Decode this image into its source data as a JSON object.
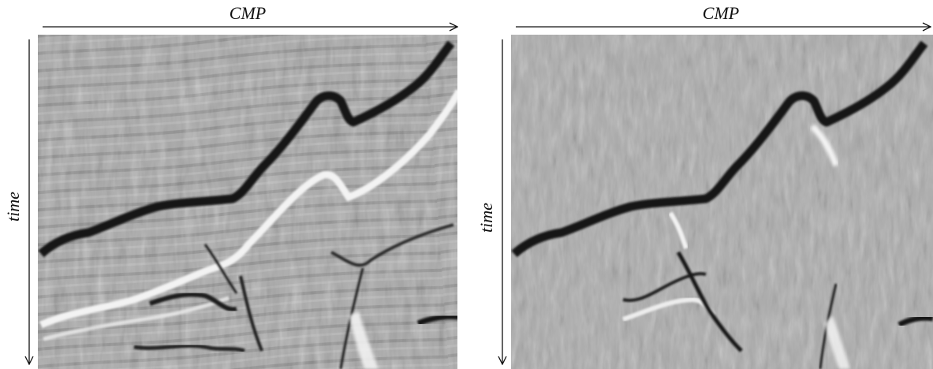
{
  "panels": [
    {
      "id": "left",
      "x_axis_label": "CMP",
      "y_axis_label": "time",
      "variant": "before"
    },
    {
      "id": "right",
      "x_axis_label": "CMP",
      "y_axis_label": "time",
      "variant": "after"
    }
  ],
  "colors": {
    "background_gray": "#a9a9a9",
    "dark_event": "#151515",
    "bright_event": "#f4f4f4",
    "axis": "#111111"
  }
}
